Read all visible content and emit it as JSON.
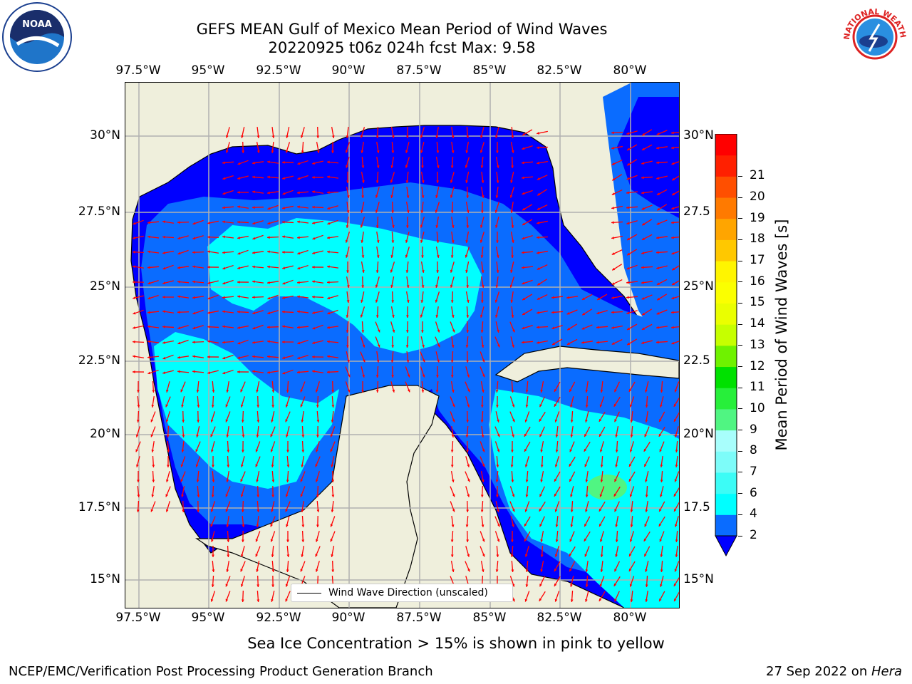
{
  "title": {
    "line1": "GEFS MEAN Gulf of Mexico Mean Period of Wind Waves",
    "line2": "20220925 t06z 024h fcst   Max: 9.58"
  },
  "axes": {
    "lon_labels": [
      "97.5°W",
      "95°W",
      "92.5°W",
      "90°W",
      "87.5°W",
      "85°W",
      "82.5°W",
      "80°W"
    ],
    "lat_labels_left": [
      "30°N",
      "27.5°N",
      "25°N",
      "22.5°N",
      "20°N",
      "17.5°N",
      "15°N"
    ],
    "lat_labels_right": [
      "30°N",
      "27.5",
      "25°N",
      "22.5",
      "20°N",
      "17.5",
      "15°N"
    ]
  },
  "legend": {
    "label": "Wind Wave Direction (unscaled)"
  },
  "colorbar": {
    "title": "Mean Period of Wind Waves [s]",
    "ticks": [
      "2",
      "4",
      "6",
      "7",
      "8",
      "9",
      "10",
      "11",
      "12",
      "13",
      "14",
      "15",
      "16",
      "17",
      "18",
      "19",
      "20",
      "21"
    ],
    "colors": [
      "#0a6cff",
      "#00ffff",
      "#3cfcf6",
      "#7dfcf9",
      "#a8fefc",
      "#50f582",
      "#27ef3a",
      "#00e100",
      "#6ff200",
      "#c6ff00",
      "#eaff00",
      "#fbff00",
      "#fff500",
      "#ffc800",
      "#ffa500",
      "#ff7a00",
      "#ff4f00",
      "#ff2000",
      "#ff0000"
    ],
    "under_color": "#0000ff"
  },
  "colors": {
    "land": "#efefdc",
    "ocean_low": "#0000ff",
    "ocean_mid": "#0a6cff",
    "ocean_high": "#00ffff",
    "ocean_top": "#a8fefc",
    "max_patch": "#50f582",
    "arrow": "#ff0000",
    "grid": "#b0b0b0"
  },
  "logos": {
    "left": "NOAA",
    "right": "NATIONAL WEATHER SERVICE"
  },
  "footer": {
    "note": "Sea Ice Concentration > 15% is shown in pink to yellow",
    "credit": "NCEP/EMC/Verification Post Processing Product Generation Branch",
    "date": "27 Sep 2022 on ",
    "machine": "Hera"
  }
}
